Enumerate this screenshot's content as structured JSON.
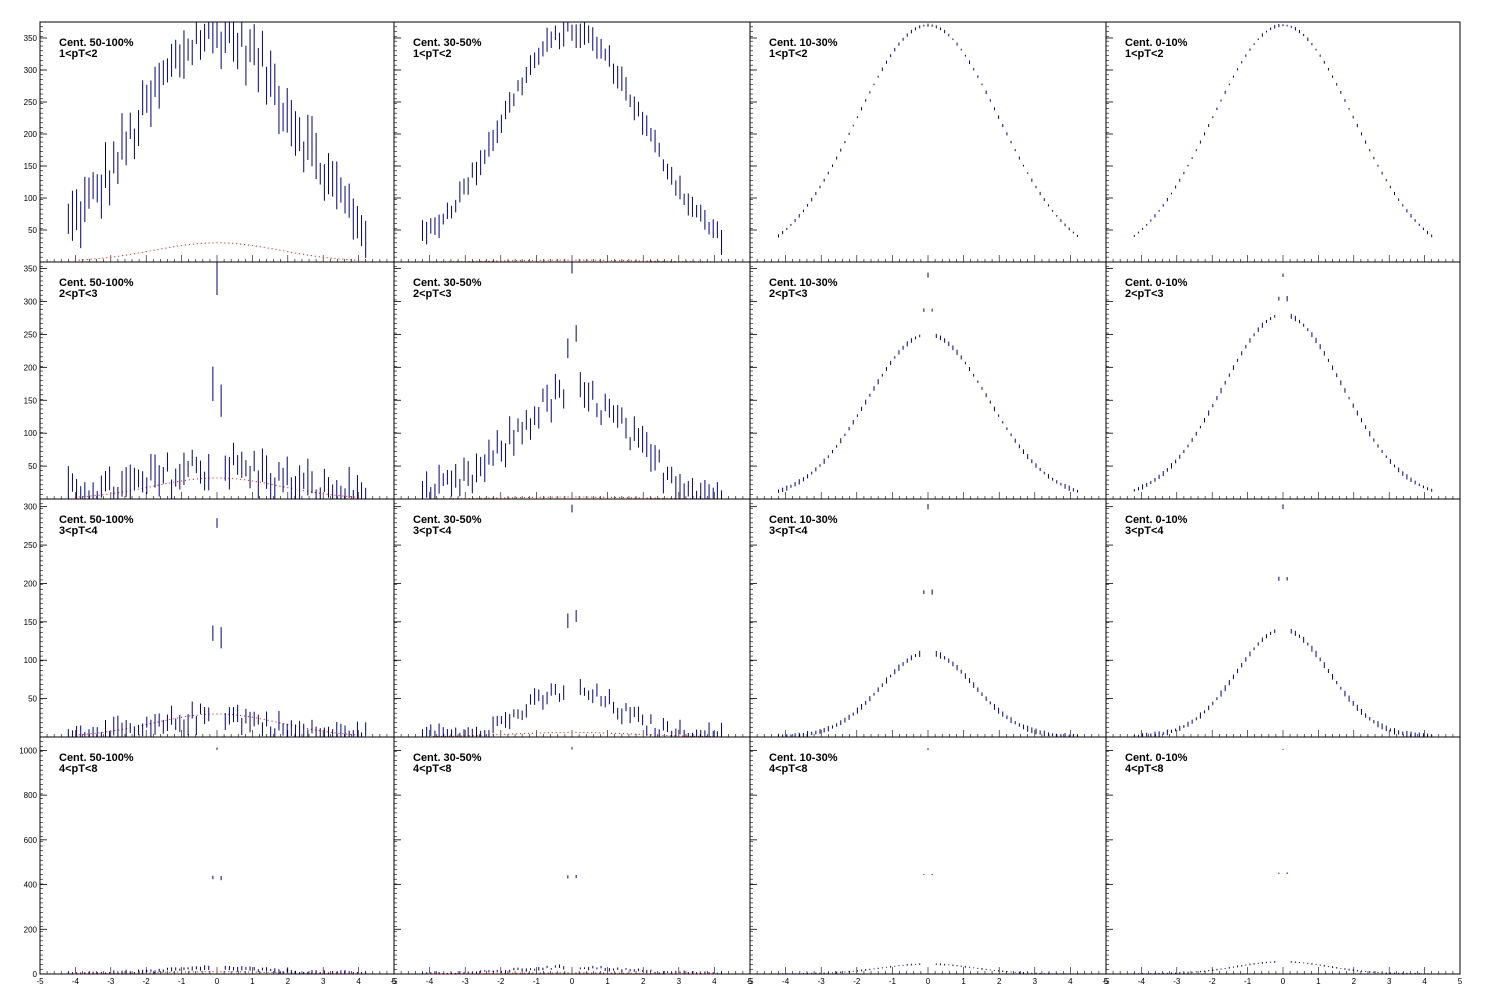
{
  "chart_data": {
    "type": "scatter",
    "layout": "4 rows x 4 columns of pads",
    "x_ticks": [
      "-5",
      "-4",
      "-3",
      "-2",
      "-1",
      "0",
      "1",
      "2",
      "3",
      "4",
      "5"
    ],
    "xlim": [
      -5,
      5
    ],
    "colors": {
      "data": "#00007f",
      "reference": "#e02020",
      "axis": "#000000"
    },
    "rows": [
      {
        "ylim": [
          0,
          375
        ],
        "y_ticks": [
          50,
          100,
          150,
          200,
          250,
          300,
          350
        ],
        "panels": [
          {
            "centrality": "Cent. 50-100%",
            "pt": "1<pT<2",
            "peak": 360,
            "width": 2.2,
            "jet": 0,
            "noise": 30,
            "errs": 28,
            "ref": 30
          },
          {
            "centrality": "Cent. 30-50%",
            "pt": "1<pT<2",
            "peak": 360,
            "width": 2.0,
            "jet": 0,
            "noise": 10,
            "errs": 14,
            "ref": 3
          },
          {
            "centrality": "Cent. 10-30%",
            "pt": "1<pT<2",
            "peak": 370,
            "width": 2.0,
            "jet": 0,
            "noise": 0,
            "errs": 2,
            "ref": 0
          },
          {
            "centrality": "Cent. 0-10%",
            "pt": "1<pT<2",
            "peak": 370,
            "width": 2.0,
            "jet": 0,
            "noise": 0,
            "errs": 2,
            "ref": 0
          }
        ]
      },
      {
        "ylim": [
          0,
          360
        ],
        "y_ticks": [
          50,
          100,
          150,
          200,
          250,
          300,
          350
        ],
        "panels": [
          {
            "centrality": "Cent. 50-100%",
            "pt": "2<pT<3",
            "peak": 50,
            "width": 1.6,
            "jet": 290,
            "noise": 25,
            "errs": 20,
            "ref": 32
          },
          {
            "centrality": "Cent. 30-50%",
            "pt": "2<pT<3",
            "peak": 160,
            "width": 1.6,
            "jet": 180,
            "noise": 20,
            "errs": 16,
            "ref": 3
          },
          {
            "centrality": "Cent. 10-30%",
            "pt": "2<pT<3",
            "peak": 250,
            "width": 1.7,
            "jet": 90,
            "noise": 0,
            "errs": 3,
            "ref": 0
          },
          {
            "centrality": "Cent. 0-10%",
            "pt": "2<pT<3",
            "peak": 280,
            "width": 1.7,
            "jet": 60,
            "noise": 0,
            "errs": 3,
            "ref": 0
          }
        ]
      },
      {
        "ylim": [
          0,
          310
        ],
        "y_ticks": [
          50,
          100,
          150,
          200,
          250,
          300
        ],
        "panels": [
          {
            "centrality": "Cent. 50-100%",
            "pt": "3<pT<4",
            "peak": 28,
            "width": 1.3,
            "jet": 260,
            "noise": 12,
            "errs": 10,
            "ref": 30
          },
          {
            "centrality": "Cent. 30-50%",
            "pt": "3<pT<4",
            "peak": 60,
            "width": 1.3,
            "jet": 230,
            "noise": 10,
            "errs": 8,
            "ref": 6
          },
          {
            "centrality": "Cent. 10-30%",
            "pt": "3<pT<4",
            "peak": 110,
            "width": 1.3,
            "jet": 190,
            "noise": 0,
            "errs": 3,
            "ref": 0
          },
          {
            "centrality": "Cent. 0-10%",
            "pt": "3<pT<4",
            "peak": 140,
            "width": 1.3,
            "jet": 160,
            "noise": 0,
            "errs": 3,
            "ref": 0
          }
        ]
      },
      {
        "ylim": [
          0,
          1060
        ],
        "y_ticks": [
          0,
          200,
          400,
          600,
          800,
          1000
        ],
        "panels": [
          {
            "centrality": "Cent. 50-100%",
            "pt": "4<pT<8",
            "peak": 25,
            "width": 1.5,
            "jet": 980,
            "noise": 6,
            "errs": 8,
            "ref": 10
          },
          {
            "centrality": "Cent. 30-50%",
            "pt": "4<pT<8",
            "peak": 30,
            "width": 1.5,
            "jet": 980,
            "noise": 6,
            "errs": 6,
            "ref": 5
          },
          {
            "centrality": "Cent. 10-30%",
            "pt": "4<pT<8",
            "peak": 45,
            "width": 1.3,
            "jet": 960,
            "noise": 0,
            "errs": 3,
            "ref": 0
          },
          {
            "centrality": "Cent. 0-10%",
            "pt": "4<pT<8",
            "peak": 55,
            "width": 1.3,
            "jet": 950,
            "noise": 0,
            "errs": 3,
            "ref": 0
          }
        ]
      }
    ]
  }
}
